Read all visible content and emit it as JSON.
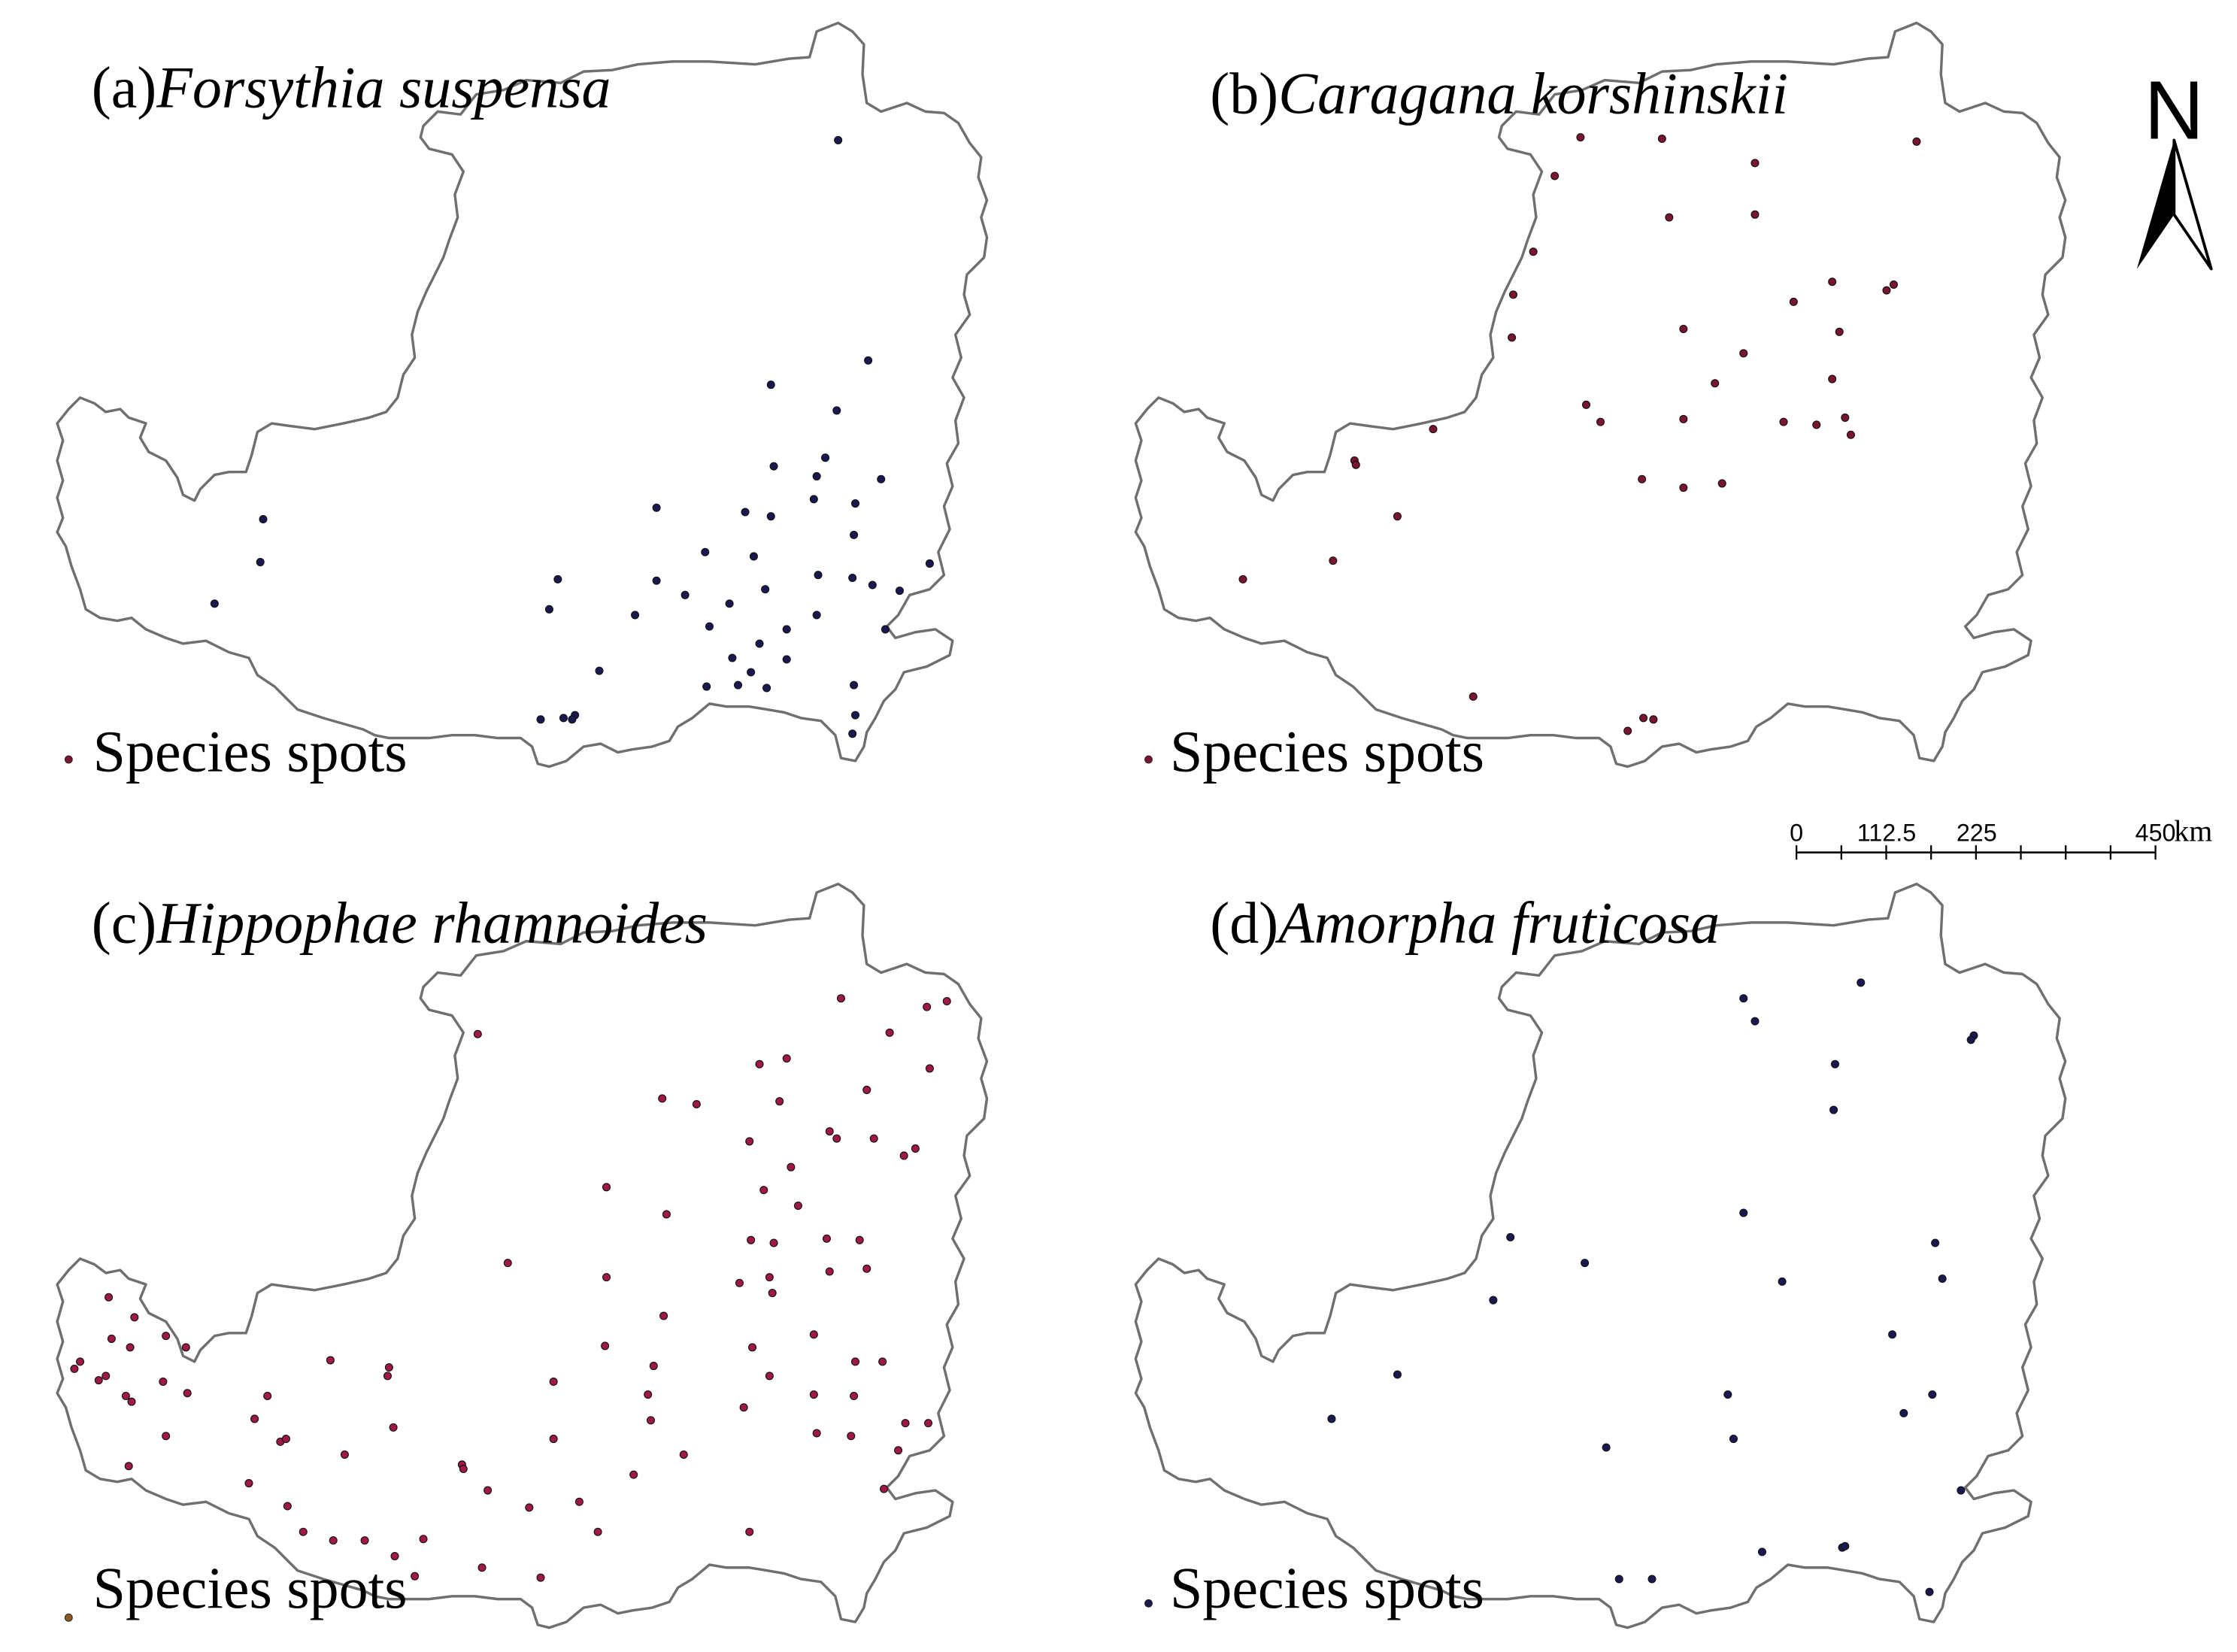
{
  "panels": [
    {
      "id": "a",
      "label_prefix": "(a)",
      "species": "Forsythia suspensa",
      "legend": "Species spots",
      "legend_marker_color": "#7a1430",
      "point_color": "#1a1850",
      "points": [
        [
          586,
          98
        ],
        [
          607,
          252
        ],
        [
          539,
          269
        ],
        [
          585,
          287
        ],
        [
          577,
          320
        ],
        [
          541,
          326
        ],
        [
          571,
          333
        ],
        [
          616,
          335
        ],
        [
          569,
          349
        ],
        [
          598,
          352
        ],
        [
          459,
          355
        ],
        [
          521,
          358
        ],
        [
          539,
          361
        ],
        [
          597,
          374
        ],
        [
          184,
          363
        ],
        [
          182,
          393
        ],
        [
          493,
          386
        ],
        [
          527,
          389
        ],
        [
          150,
          422
        ],
        [
          390,
          405
        ],
        [
          459,
          406
        ],
        [
          572,
          402
        ],
        [
          596,
          404
        ],
        [
          610,
          409
        ],
        [
          629,
          413
        ],
        [
          650,
          394
        ],
        [
          479,
          416
        ],
        [
          535,
          412
        ],
        [
          384,
          426
        ],
        [
          510,
          422
        ],
        [
          444,
          430
        ],
        [
          571,
          430
        ],
        [
          496,
          438
        ],
        [
          619,
          440
        ],
        [
          550,
          440
        ],
        [
          531,
          450
        ],
        [
          512,
          460
        ],
        [
          550,
          461
        ],
        [
          525,
          470
        ],
        [
          419,
          469
        ],
        [
          494,
          480
        ],
        [
          516,
          479
        ],
        [
          536,
          481
        ],
        [
          597,
          479
        ],
        [
          378,
          503
        ],
        [
          394,
          502
        ],
        [
          402,
          500
        ],
        [
          400,
          503
        ],
        [
          598,
          500
        ],
        [
          596,
          513
        ]
      ]
    },
    {
      "id": "b",
      "label_prefix": "(b)",
      "species": "Caragana korshinskii",
      "legend": "Species spots",
      "legend_marker_color": "#7a1430",
      "point_color": "#7a1430",
      "points": [
        [
          1105,
          96
        ],
        [
          1162,
          97
        ],
        [
          1340,
          99
        ],
        [
          1227,
          114
        ],
        [
          1087,
          123
        ],
        [
          1167,
          152
        ],
        [
          1227,
          150
        ],
        [
          1072,
          176
        ],
        [
          1058,
          206
        ],
        [
          1281,
          197
        ],
        [
          1319,
          203
        ],
        [
          1324,
          199
        ],
        [
          1254,
          211
        ],
        [
          1057,
          236
        ],
        [
          1177,
          230
        ],
        [
          1286,
          232
        ],
        [
          1219,
          247
        ],
        [
          1199,
          268
        ],
        [
          1281,
          265
        ],
        [
          1109,
          283
        ],
        [
          1119,
          295
        ],
        [
          1177,
          293
        ],
        [
          1247,
          295
        ],
        [
          1270,
          297
        ],
        [
          1290,
          292
        ],
        [
          1294,
          304
        ],
        [
          1002,
          300
        ],
        [
          947,
          322
        ],
        [
          948,
          325
        ],
        [
          1148,
          335
        ],
        [
          1177,
          341
        ],
        [
          1204,
          338
        ],
        [
          977,
          361
        ],
        [
          932,
          392
        ],
        [
          869,
          405
        ],
        [
          1030,
          487
        ],
        [
          1149,
          502
        ],
        [
          1156,
          503
        ],
        [
          1138,
          511
        ]
      ]
    },
    {
      "id": "c",
      "label_prefix": "(c)",
      "species": "Hippophae rhamnoides",
      "legend": "Species spots",
      "legend_marker_color": "#8a5a22",
      "point_color": "#a01845",
      "points": [
        [
          588,
          698
        ],
        [
          648,
          704
        ],
        [
          662,
          700
        ],
        [
          334,
          723
        ],
        [
          622,
          722
        ],
        [
          531,
          744
        ],
        [
          550,
          740
        ],
        [
          650,
          747
        ],
        [
          606,
          762
        ],
        [
          463,
          768
        ],
        [
          487,
          772
        ],
        [
          545,
          770
        ],
        [
          580,
          791
        ],
        [
          585,
          796
        ],
        [
          611,
          796
        ],
        [
          524,
          798
        ],
        [
          632,
          808
        ],
        [
          640,
          803
        ],
        [
          553,
          816
        ],
        [
          424,
          830
        ],
        [
          534,
          832
        ],
        [
          558,
          843
        ],
        [
          466,
          849
        ],
        [
          525,
          867
        ],
        [
          541,
          869
        ],
        [
          578,
          866
        ],
        [
          601,
          867
        ],
        [
          355,
          883
        ],
        [
          517,
          897
        ],
        [
          538,
          893
        ],
        [
          540,
          904
        ],
        [
          580,
          889
        ],
        [
          606,
          887
        ],
        [
          424,
          893
        ],
        [
          76,
          907
        ],
        [
          94,
          921
        ],
        [
          116,
          934
        ],
        [
          78,
          936
        ],
        [
          91,
          942
        ],
        [
          130,
          942
        ],
        [
          56,
          952
        ],
        [
          52,
          957
        ],
        [
          74,
          962
        ],
        [
          69,
          965
        ],
        [
          88,
          976
        ],
        [
          92,
          980
        ],
        [
          114,
          966
        ],
        [
          131,
          974
        ],
        [
          423,
          941
        ],
        [
          464,
          920
        ],
        [
          526,
          942
        ],
        [
          569,
          933
        ],
        [
          598,
          952
        ],
        [
          617,
          952
        ],
        [
          231,
          951
        ],
        [
          272,
          956
        ],
        [
          271,
          962
        ],
        [
          457,
          955
        ],
        [
          538,
          962
        ],
        [
          387,
          966
        ],
        [
          187,
          976
        ],
        [
          453,
          975
        ],
        [
          569,
          975
        ],
        [
          597,
          976
        ],
        [
          520,
          984
        ],
        [
          178,
          992
        ],
        [
          275,
          998
        ],
        [
          455,
          993
        ],
        [
          571,
          1002
        ],
        [
          595,
          1004
        ],
        [
          633,
          995
        ],
        [
          649,
          995
        ],
        [
          116,
          1004
        ],
        [
          196,
          1008
        ],
        [
          200,
          1006
        ],
        [
          387,
          1006
        ],
        [
          628,
          1014
        ],
        [
          241,
          1017
        ],
        [
          478,
          1017
        ],
        [
          323,
          1024
        ],
        [
          324,
          1027
        ],
        [
          443,
          1031
        ],
        [
          174,
          1037
        ],
        [
          90,
          1025
        ],
        [
          341,
          1042
        ],
        [
          618,
          1041
        ],
        [
          201,
          1053
        ],
        [
          370,
          1054
        ],
        [
          405,
          1050
        ],
        [
          212,
          1071
        ],
        [
          233,
          1077
        ],
        [
          255,
          1077
        ],
        [
          296,
          1076
        ],
        [
          418,
          1071
        ],
        [
          524,
          1071
        ],
        [
          276,
          1088
        ],
        [
          337,
          1096
        ],
        [
          290,
          1102
        ],
        [
          378,
          1103
        ]
      ]
    },
    {
      "id": "d",
      "label_prefix": "(d)",
      "species": "Amorpha fruticosa",
      "legend": "Species spots",
      "legend_marker_color": "#1a1850",
      "point_color": "#1a1850",
      "points": [
        [
          1219,
          698
        ],
        [
          1301,
          687
        ],
        [
          1227,
          714
        ],
        [
          1380,
          724
        ],
        [
          1378,
          727
        ],
        [
          1283,
          744
        ],
        [
          1282,
          776
        ],
        [
          1219,
          848
        ],
        [
          1056,
          865
        ],
        [
          1353,
          869
        ],
        [
          1108,
          883
        ],
        [
          1358,
          894
        ],
        [
          1246,
          896
        ],
        [
          1044,
          909
        ],
        [
          1323,
          933
        ],
        [
          977,
          961
        ],
        [
          1208,
          975
        ],
        [
          1351,
          975
        ],
        [
          931,
          992
        ],
        [
          1331,
          988
        ],
        [
          1212,
          1006
        ],
        [
          1123,
          1012
        ],
        [
          1371,
          1042
        ],
        [
          1232,
          1085
        ],
        [
          1288,
          1082
        ],
        [
          1290,
          1081
        ],
        [
          1132,
          1104
        ],
        [
          1155,
          1104
        ],
        [
          1349,
          1113
        ]
      ]
    }
  ],
  "north_arrow": {
    "label": "N"
  },
  "scale_bar": {
    "tick_labels": [
      "0",
      "112.5",
      "225",
      "450"
    ],
    "tick_values": [
      0,
      112.5,
      225,
      450
    ],
    "unit": "km"
  }
}
